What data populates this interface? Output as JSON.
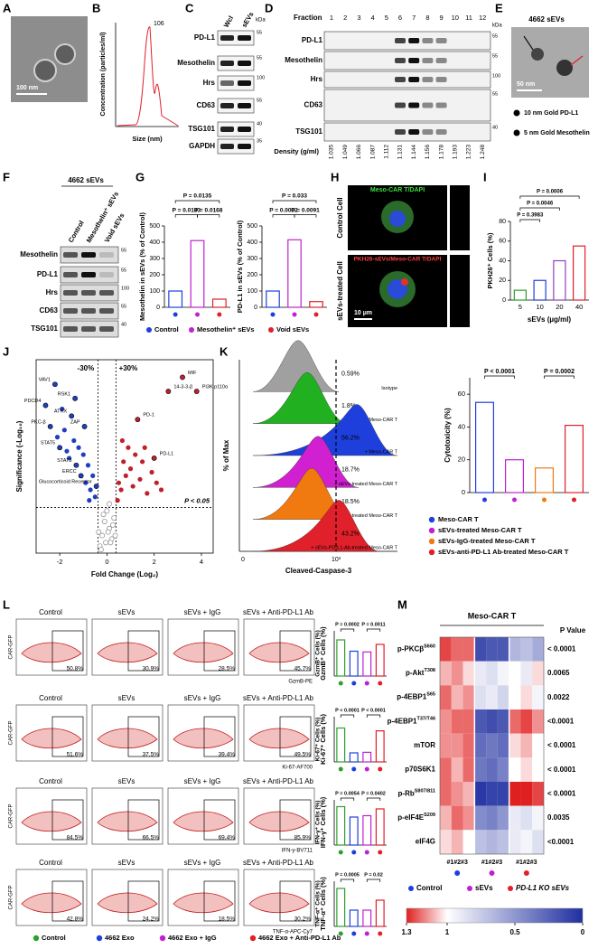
{
  "panels": {
    "A": {
      "label": "A",
      "scale": "100 nm"
    },
    "B": {
      "label": "B",
      "peak": "106",
      "ylabel": "Concentration (particles/ml)",
      "xlabel": "Size (nm)"
    },
    "C": {
      "label": "C",
      "lanes": [
        "Wcl",
        "sEVs"
      ],
      "kda": "kDa",
      "rows": [
        "PD-L1",
        "Mesothelin",
        "Hrs",
        "CD63",
        "TSG101",
        "GAPDH"
      ],
      "markers": [
        "55",
        "55",
        "100",
        "55",
        "40",
        "35"
      ]
    },
    "D": {
      "label": "D",
      "fraction_title": "Fraction",
      "fractions": [
        "1",
        "2",
        "3",
        "4",
        "5",
        "6",
        "7",
        "8",
        "9",
        "10",
        "11",
        "12"
      ],
      "kda": "kDa",
      "rows": [
        "PD-L1",
        "Mesothelin",
        "Hrs",
        "CD63",
        "TSG101"
      ],
      "markers": [
        "55",
        "55",
        "100",
        "55",
        "40"
      ],
      "density_title": "Density (g/ml)",
      "densities": [
        "1.035",
        "1.049",
        "1.066",
        "1.087",
        "1.112",
        "1.131",
        "1.144",
        "1.156",
        "1.178",
        "1.193",
        "1.223",
        "1.248"
      ]
    },
    "E": {
      "label": "E",
      "title": "4662 sEVs",
      "scale": "50 nm",
      "legend": [
        "10 nm Gold PD-L1",
        "5 nm Gold Mesothelin"
      ]
    },
    "F": {
      "label": "F",
      "title": "4662 sEVs",
      "lanes": [
        "Control",
        "Mesothelin⁺ sEVs",
        "Void sEVs"
      ],
      "rows": [
        "Mesothelin",
        "PD-L1",
        "Hrs",
        "CD63",
        "TSG101"
      ],
      "markers": [
        "55",
        "55",
        "100",
        "55",
        "40"
      ]
    },
    "G": {
      "label": "G",
      "colors": [
        "#1f3fdc",
        "#c020d0",
        "#e0202a"
      ],
      "legend": [
        "Control",
        "Mesothelin⁺ sEVs",
        "Void sEVs"
      ],
      "charts": [
        {
          "ylabel": "Mesothelin in sEVs (% of Control)",
          "values": [
            100,
            410,
            50
          ],
          "ylim": [
            0,
            500
          ],
          "yticks": [
            0,
            100,
            200,
            300,
            400,
            500
          ],
          "pvalues": [
            "P = 0.0135",
            "P = 0.0183",
            "P = 0.0168"
          ]
        },
        {
          "ylabel": "PD-L1 in sEVs (% of Control)",
          "values": [
            100,
            415,
            35
          ],
          "ylim": [
            0,
            500
          ],
          "yticks": [
            0,
            100,
            200,
            300,
            400,
            500
          ],
          "pvalues": [
            "P = 0.033",
            "P = 0.0092",
            "P = 0.0091"
          ]
        }
      ]
    },
    "H": {
      "label": "H",
      "top_stain": "Meso-CAR T/DAPI",
      "top_side": "Control Cell",
      "bottom_stain": "PKH26-sEVs/Meso-CAR T/DAPI",
      "bottom_side": "sEVs-treated Cell",
      "scale": "10 µm"
    },
    "I": {
      "label": "I",
      "ylabel": "PKH26⁺ Cells (%)",
      "xlabel": "sEVs (µg/ml)",
      "categories": [
        "5",
        "10",
        "20",
        "40"
      ],
      "values": [
        10,
        20,
        40,
        55
      ],
      "ylim": [
        0,
        80
      ],
      "yticks": [
        0,
        20,
        40,
        60,
        80
      ],
      "colors": [
        "#2ca02c",
        "#1f3fdc",
        "#9040c0",
        "#e0202a"
      ],
      "pvalues": [
        "P = 0.0006",
        "P = 0.0046",
        "P = 0.3983"
      ]
    },
    "J": {
      "label": "J",
      "ylabel": "Significance (-Log₁₀)",
      "xlabel": "Fold Change (Log₂)",
      "xlim": [
        -3,
        4.5
      ],
      "ylim": [
        0,
        5.5
      ],
      "xticks": [
        -2,
        0,
        2,
        4
      ],
      "down_label": "-30%",
      "up_label": "+30%",
      "p_label": "P < 0.05",
      "thresholds": {
        "x": [
          -0.38,
          0.38
        ],
        "y": 1.3
      },
      "down": {
        "color": "#1f3fbf",
        "x": [
          -2.6,
          -2.4,
          -2.2,
          -2.0,
          -1.9,
          -1.8,
          -1.6,
          -1.5,
          -1.4,
          -1.3,
          -1.2,
          -1.1,
          -1.0,
          -0.9,
          -0.8,
          -0.7,
          -0.6,
          -0.5,
          -0.45,
          -1.7,
          -2.1,
          -1.35,
          -0.95,
          -0.75
        ],
        "y": [
          4.2,
          3.6,
          4.8,
          3.0,
          4.1,
          3.5,
          2.7,
          3.9,
          3.2,
          2.5,
          3.0,
          2.2,
          2.8,
          2.0,
          2.5,
          1.8,
          2.2,
          1.6,
          1.9,
          2.9,
          3.3,
          4.4,
          3.6,
          1.5
        ]
      },
      "up": {
        "color": "#c0202a",
        "x": [
          0.45,
          0.5,
          0.6,
          0.7,
          0.8,
          0.9,
          1.0,
          1.1,
          1.2,
          1.4,
          1.5,
          1.7,
          1.9,
          2.1,
          2.3,
          2.6,
          3.2,
          3.8,
          0.65,
          1.3,
          1.6,
          2.0
        ],
        "y": [
          1.5,
          2.0,
          1.8,
          2.6,
          2.2,
          3.0,
          2.4,
          1.9,
          2.8,
          2.1,
          2.6,
          1.7,
          2.3,
          2.0,
          1.8,
          4.6,
          5.0,
          4.6,
          3.2,
          3.8,
          3.0,
          2.7
        ]
      },
      "ns": {
        "color": "#999999",
        "x": [
          -0.3,
          -0.2,
          -0.1,
          0,
          0.1,
          0.2,
          0.3,
          -0.25,
          0.15,
          0.05,
          -0.15,
          0.25,
          -0.05,
          0.35,
          -0.35,
          0.1
        ],
        "y": [
          0.2,
          0.5,
          0.9,
          1.2,
          0.7,
          0.4,
          1.0,
          0.1,
          0.3,
          0.6,
          1.1,
          0.8,
          0.3,
          0.5,
          0.6,
          1.4
        ]
      },
      "genes": [
        {
          "text": "VAV1",
          "x": -2.2,
          "y": 4.8
        },
        {
          "text": "RSK1",
          "x": -1.35,
          "y": 4.4
        },
        {
          "text": "ZAP",
          "x": -0.95,
          "y": 3.6
        },
        {
          "text": "ATRX",
          "x": -1.5,
          "y": 3.9
        },
        {
          "text": "PDCD4",
          "x": -2.6,
          "y": 4.2
        },
        {
          "text": "PKC-β",
          "x": -2.4,
          "y": 3.6
        },
        {
          "text": "ERCC",
          "x": -1.1,
          "y": 2.2
        },
        {
          "text": "STAT5",
          "x": -2.0,
          "y": 3.0
        },
        {
          "text": "STAT3",
          "x": -1.3,
          "y": 2.5
        },
        {
          "text": "Glucocorticoid Receptor",
          "x": -0.45,
          "y": 1.9
        },
        {
          "text": "PI3K p110α",
          "x": 3.8,
          "y": 4.6
        },
        {
          "text": "MIF",
          "x": 3.2,
          "y": 5.0
        },
        {
          "text": "14-3-3-β",
          "x": 2.6,
          "y": 4.6
        },
        {
          "text": "PD-1",
          "x": 1.3,
          "y": 3.8
        },
        {
          "text": "PD-L1",
          "x": 2.0,
          "y": 2.7
        }
      ]
    },
    "K": {
      "label": "K",
      "ylabel": "% of Max",
      "xlabel": "Cleaved-Caspase-3",
      "xtick_labels": [
        "0",
        "10³"
      ],
      "histograms": [
        {
          "name": "Isotype",
          "percent": "0.59%",
          "color": "#a0a0a0"
        },
        {
          "name": "Without Meso-CAR T",
          "percent": "1.8%",
          "color": "#20b020"
        },
        {
          "name": "+ Meso-CAR T",
          "percent": "56.2%",
          "color": "#1f3fdc"
        },
        {
          "name": "+ sEVs-treated Meso-CAR T",
          "percent": "18.7%",
          "color": "#d020d0"
        },
        {
          "name": "+ sEVs-IgG-treated Meso-CAR T",
          "percent": "18.5%",
          "color": "#f07a10"
        },
        {
          "name": "+ sEVs-PD-L1-Ab-treated Meso-CAR T",
          "percent": "43.2%",
          "color": "#e0202a"
        }
      ],
      "bar": {
        "ylabel": "Cytotoxicity (%)",
        "values": [
          55,
          20,
          15,
          41
        ],
        "ylim": [
          0,
          70
        ],
        "yticks": [
          0,
          20,
          40,
          60
        ],
        "colors": [
          "#1f3fdc",
          "#c020d0",
          "#f07a10",
          "#e0202a"
        ],
        "pvalues": [
          "P < 0.0001",
          "P = 0.0002"
        ],
        "legend": [
          "Meso-CAR T",
          "sEVs-treated Meso-CAR T",
          "sEVs-IgG-treated Meso-CAR T",
          "sEVs-anti-PD-L1 Ab-treated Meso-CAR T"
        ]
      }
    },
    "L": {
      "label": "L",
      "columns": [
        "Control",
        "sEVs",
        "sEVs + IgG",
        "sEVs + Anti-PD-L1 Ab"
      ],
      "ylabel": "CAR-GFP",
      "colors": [
        "#2ca02c",
        "#1f3fdc",
        "#c020d0",
        "#e0202a"
      ],
      "rows": [
        {
          "marker": "GzmB-PE",
          "ylabel": "GzmB⁺ Cells (%)",
          "percents": [
            "50.8%",
            "30.9%",
            "28.5%",
            "45.7%"
          ],
          "values": [
            48,
            33,
            32,
            42
          ],
          "ylim": [
            0,
            60
          ],
          "pvalues": [
            "P = 0.0002",
            "P = 0.0011"
          ]
        },
        {
          "marker": "Ki-67-AF700",
          "ylabel": "Ki-67⁺ Cells (%)",
          "percents": [
            "51.6%",
            "37.5%",
            "39.4%",
            "49.5%"
          ],
          "values": [
            60,
            16,
            17,
            55
          ],
          "ylim": [
            0,
            80
          ],
          "pvalues": [
            "P < 0.0001",
            "P < 0.0001"
          ]
        },
        {
          "marker": "IFN-γ-BV711",
          "ylabel": "IFN-γ⁺ Cells (%)",
          "percents": [
            "84.5%",
            "66.5%",
            "69.4%",
            "85.9%"
          ],
          "values": [
            85,
            62,
            65,
            80
          ],
          "ylim": [
            0,
            100
          ],
          "pvalues": [
            "P = 0.0054",
            "P = 0.0402"
          ]
        },
        {
          "marker": "TNF-α-APC-Cy7",
          "ylabel": "TNF-α⁺ Cells (%)",
          "percents": [
            "42.8%",
            "24.2%",
            "18.5%",
            "30.2%"
          ],
          "values": [
            42,
            18,
            18,
            29
          ],
          "ylim": [
            0,
            50
          ],
          "pvalues": [
            "P = 0.0005",
            "P = 0.02"
          ]
        }
      ],
      "legend": [
        "Control",
        "4662 Exo",
        "4662 Exo + IgG",
        "4662 Exo + Anti-PD-L1 Ab"
      ]
    },
    "M": {
      "label": "M",
      "title": "Meso-CAR T",
      "p_title": "P Value",
      "col_group_label": "#1#2#3",
      "rows": [
        {
          "name": "p-PKCβ",
          "site": "S660",
          "p": "< 0.0001"
        },
        {
          "name": "p-Akt",
          "site": "T308",
          "p": "0.0065"
        },
        {
          "name": "p-4EBP1",
          "site": "S65",
          "p": "0.0022"
        },
        {
          "name": "p-4EBP1",
          "site": "T37/T46",
          "p": "<0.0001"
        },
        {
          "name": "mTOR",
          "site": null,
          "p": "< 0.0001"
        },
        {
          "name": "p70S6K1",
          "site": null,
          "p": "< 0.0001"
        },
        {
          "name": "p-Rb",
          "site": "S807/811",
          "p": "< 0.0001"
        },
        {
          "name": "p-eIF4E",
          "site": "S209",
          "p": "0.0035"
        },
        {
          "name": "eIF4G",
          "site": null,
          "p": "<0.0001"
        }
      ],
      "matrix": [
        [
          1.25,
          1.2,
          1.2,
          0.15,
          0.2,
          0.2,
          0.65,
          0.7,
          0.6
        ],
        [
          1.1,
          1.15,
          1.05,
          0.9,
          0.85,
          0.95,
          1.0,
          0.9,
          1.05
        ],
        [
          1.2,
          1.1,
          1.15,
          0.85,
          0.9,
          0.8,
          1.0,
          1.05,
          0.95
        ],
        [
          1.15,
          1.2,
          1.2,
          0.2,
          0.15,
          0.2,
          1.2,
          1.25,
          1.15
        ],
        [
          1.15,
          1.15,
          1.2,
          0.3,
          0.35,
          0.3,
          1.05,
          1.1,
          1.0
        ],
        [
          1.2,
          1.1,
          1.2,
          0.35,
          0.3,
          0.4,
          1.0,
          1.05,
          1.0
        ],
        [
          1.2,
          1.15,
          1.1,
          0.05,
          0.1,
          0.1,
          1.3,
          1.3,
          1.25
        ],
        [
          1.1,
          1.2,
          1.15,
          0.45,
          0.4,
          0.5,
          0.9,
          0.85,
          0.95
        ],
        [
          1.05,
          1.1,
          1.0,
          0.7,
          0.65,
          0.7,
          0.9,
          0.95,
          0.85
        ]
      ],
      "zlim": [
        1.3,
        0
      ],
      "center": 1,
      "zticks": [
        1.3,
        1,
        0.5,
        0
      ],
      "high_color": "#e02020",
      "mid_color": "#ffffff",
      "low_color": "#1f2fa0",
      "groups": [
        {
          "name": "Control",
          "color": "#1f3fdc"
        },
        {
          "name": "sEVs",
          "color": "#c020d0"
        },
        {
          "name": "PD-L1 KO sEVs",
          "color": "#e0202a"
        }
      ]
    }
  }
}
